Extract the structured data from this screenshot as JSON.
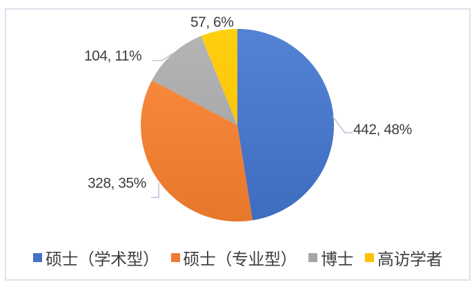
{
  "chart_data": {
    "type": "pie",
    "title": "",
    "legend_position": "bottom",
    "start_angle_deg": 0,
    "direction": "clockwise",
    "data_label_format": "value, percent",
    "total": 931,
    "slices": [
      {
        "label": "硕士（学术型）",
        "value": 442,
        "percent": "48%",
        "data_label": "442, 48%",
        "color": "#4472C4"
      },
      {
        "label": "硕士（专业型）",
        "value": 328,
        "percent": "35%",
        "data_label": "328, 35%",
        "color": "#ED7D31"
      },
      {
        "label": "博士",
        "value": 104,
        "percent": "11%",
        "data_label": "104, 11%",
        "color": "#A5A5A5"
      },
      {
        "label": "高访学者",
        "value": 57,
        "percent": "6%",
        "data_label": "57, 6%",
        "color": "#FFC000"
      }
    ],
    "frame_border_color": "#DCE2EB",
    "leader_line_color": "#B7C3D6",
    "label_text_color": "#3d3d3d"
  }
}
